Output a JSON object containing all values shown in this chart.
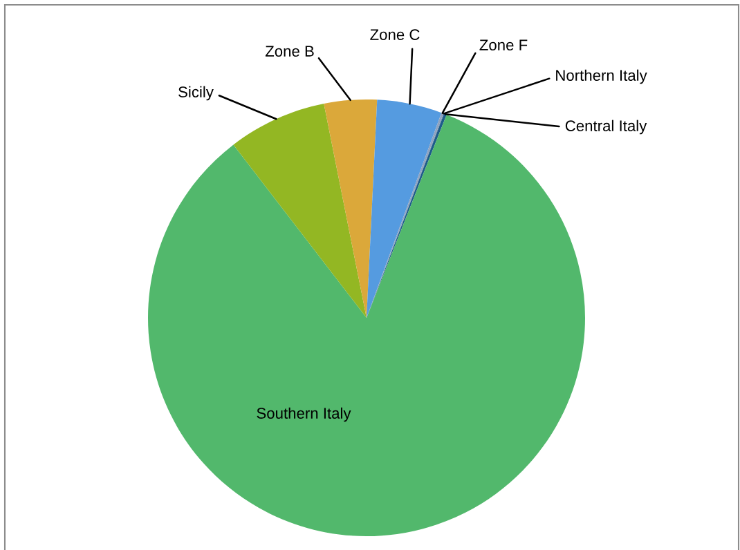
{
  "chart_data": {
    "type": "pie",
    "categories": [
      "Northern Italy",
      "Central Italy",
      "Southern Italy",
      "Sicily",
      "Zone B",
      "Zone C",
      "Zone F"
    ],
    "values": [
      0.05,
      0.2,
      83.6,
      7.3,
      3.9,
      4.8,
      0.15
    ],
    "colors": [
      "#6f86a8",
      "#1d5c8a",
      "#52b86c",
      "#93b723",
      "#dba83a",
      "#559be0",
      "#8da2c0"
    ]
  }
}
